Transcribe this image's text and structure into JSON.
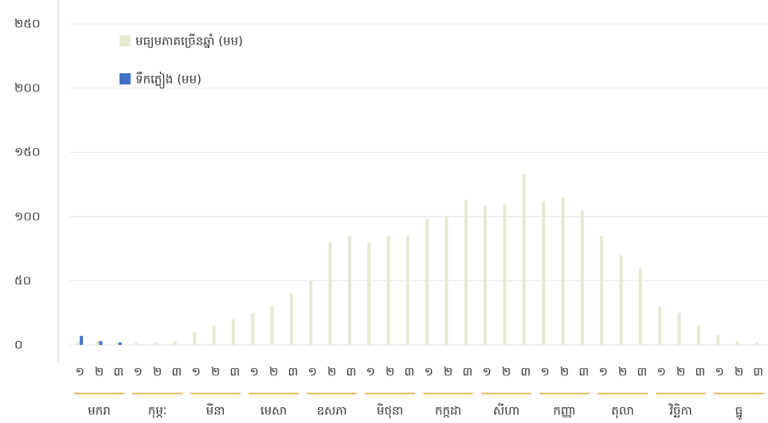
{
  "chart_data": {
    "type": "bar",
    "categories": [
      "១",
      "២",
      "៣",
      "១",
      "២",
      "៣",
      "១",
      "២",
      "៣",
      "១",
      "២",
      "៣",
      "១",
      "២",
      "៣",
      "១",
      "២",
      "៣",
      "១",
      "២",
      "៣",
      "១",
      "២",
      "៣",
      "១",
      "២",
      "៣",
      "១",
      "២",
      "៣",
      "១",
      "២",
      "៣",
      "១",
      "២",
      "៣"
    ],
    "groups": [
      "មករា",
      "កុម្ភៈ",
      "មីនា",
      "មេសា",
      "ឧសភា",
      "មិថុនា",
      "កក្កដា",
      "សីហា",
      "កញ្ញា",
      "តុលា",
      "វិច្ឆិកា",
      "ធ្នូ"
    ],
    "series": [
      {
        "name": "មធ្យមភាគច្រើនឆ្នាំ (មម)",
        "color": "#e3ebd3",
        "values": [
          3,
          3,
          2,
          2,
          2,
          3,
          10,
          15,
          20,
          25,
          30,
          40,
          50,
          80,
          85,
          80,
          85,
          85,
          98,
          100,
          113,
          108,
          110,
          133,
          112,
          115,
          105,
          85,
          70,
          60,
          30,
          25,
          15,
          8,
          3,
          2
        ]
      },
      {
        "name": "ទឹកភ្លៀង (មម)",
        "color": "#4472c4",
        "values": [
          7,
          3,
          2,
          null,
          null,
          null,
          null,
          null,
          null,
          null,
          null,
          null,
          null,
          null,
          null,
          null,
          null,
          null,
          null,
          null,
          null,
          null,
          null,
          null,
          null,
          null,
          null,
          null,
          null,
          null,
          null,
          null,
          null,
          null,
          null,
          null
        ]
      }
    ],
    "ylim": [
      0,
      250
    ],
    "yticks": [
      {
        "value": 0,
        "label": "០"
      },
      {
        "value": 50,
        "label": "៥០"
      },
      {
        "value": 100,
        "label": "១០០"
      },
      {
        "value": 150,
        "label": "១៥០"
      },
      {
        "value": 200,
        "label": "២០០"
      },
      {
        "value": 250,
        "label": "២៥០"
      }
    ],
    "grid": true
  }
}
